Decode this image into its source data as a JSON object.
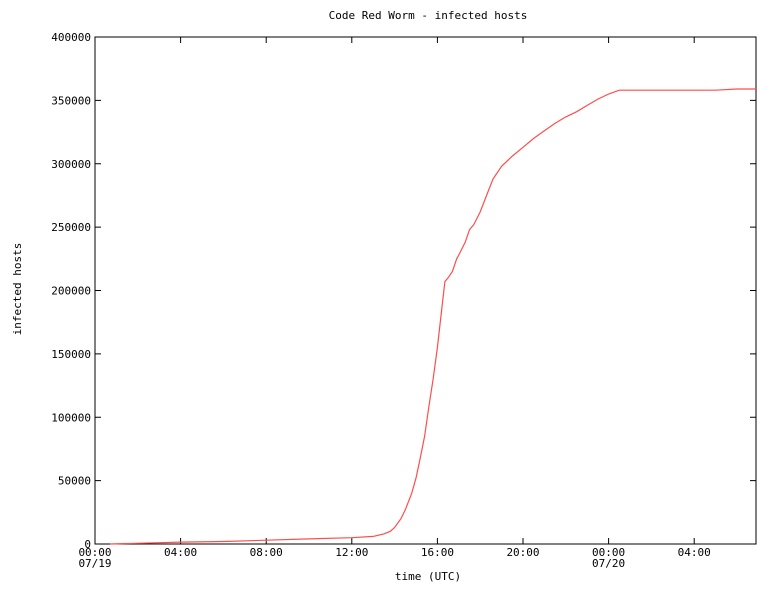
{
  "chart_data": {
    "type": "line",
    "title": "Code Red Worm - infected hosts",
    "xlabel": "time (UTC)",
    "ylabel": "infected hosts",
    "ylim": [
      0,
      400000
    ],
    "xlim_hours": [
      0,
      31
    ],
    "x_unit": "hours since 00:00 07/19 (UTC)",
    "grid": false,
    "legend": "none",
    "yticks": [
      {
        "value": 0,
        "label": "0"
      },
      {
        "value": 50000,
        "label": "50000"
      },
      {
        "value": 100000,
        "label": "100000"
      },
      {
        "value": 150000,
        "label": "150000"
      },
      {
        "value": 200000,
        "label": "200000"
      },
      {
        "value": 250000,
        "label": "250000"
      },
      {
        "value": 300000,
        "label": "300000"
      },
      {
        "value": 350000,
        "label": "350000"
      },
      {
        "value": 400000,
        "label": "400000"
      }
    ],
    "xticks": [
      {
        "hour": 0,
        "label": "00:00",
        "sublabel": "07/19"
      },
      {
        "hour": 4,
        "label": "04:00",
        "sublabel": ""
      },
      {
        "hour": 8,
        "label": "08:00",
        "sublabel": ""
      },
      {
        "hour": 12,
        "label": "12:00",
        "sublabel": ""
      },
      {
        "hour": 16,
        "label": "16:00",
        "sublabel": ""
      },
      {
        "hour": 20,
        "label": "20:00",
        "sublabel": ""
      },
      {
        "hour": 24,
        "label": "00:00",
        "sublabel": "07/20"
      },
      {
        "hour": 28,
        "label": "04:00",
        "sublabel": ""
      }
    ],
    "series": [
      {
        "color": "#ff4d4d",
        "x": [
          0.7,
          3.0,
          4.0,
          6.0,
          8.0,
          10.0,
          12.0,
          13.0,
          13.5,
          13.8,
          14.0,
          14.3,
          14.5,
          14.8,
          15.0,
          15.2,
          15.4,
          15.6,
          15.8,
          16.0,
          16.2,
          16.35,
          16.5,
          16.7,
          16.9,
          17.0,
          17.3,
          17.5,
          17.7,
          18.0,
          18.3,
          18.6,
          19.0,
          19.5,
          20.0,
          20.5,
          21.0,
          21.5,
          22.0,
          22.5,
          23.0,
          23.5,
          24.0,
          24.5,
          25.0,
          26.0,
          27.0,
          28.0,
          29.0,
          30.0,
          31.0
        ],
        "y": [
          0,
          1000,
          1500,
          2000,
          3000,
          4000,
          5000,
          6000,
          8000,
          10000,
          13000,
          20000,
          27000,
          40000,
          52000,
          68000,
          85000,
          108000,
          130000,
          155000,
          185000,
          207000,
          210000,
          215000,
          225000,
          228000,
          238000,
          248000,
          252000,
          262000,
          275000,
          288000,
          298000,
          306000,
          313000,
          320000,
          326000,
          332000,
          337000,
          341000,
          346000,
          351000,
          355000,
          358000,
          358000,
          358000,
          358000,
          358000,
          358000,
          359000,
          359000
        ]
      }
    ]
  }
}
